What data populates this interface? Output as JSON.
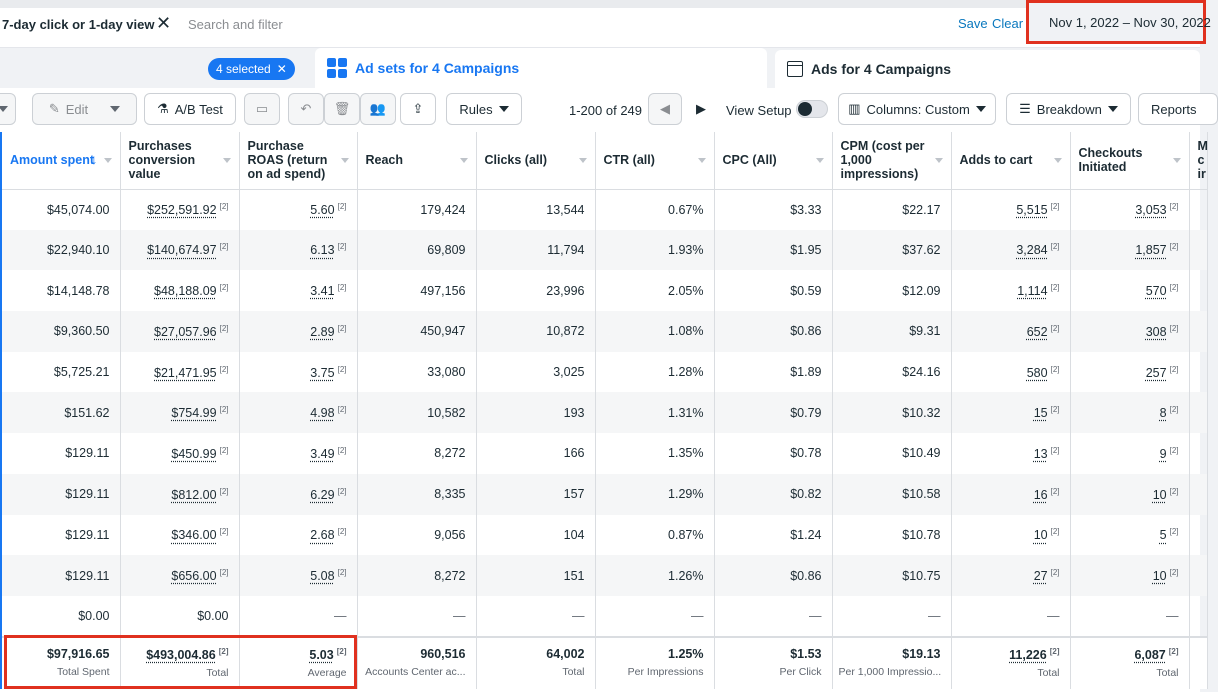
{
  "filter_bar": {
    "attribution_chip": "7-day click or 1-day view",
    "search_placeholder": "Search and filter",
    "save_label": "Save",
    "clear_label": "Clear",
    "date_range": "Nov 1, 2022 – Nov 30, 2022"
  },
  "tabs": {
    "selected_count": "4 selected",
    "active_tab": "Ad sets for 4 Campaigns",
    "inactive_tab": "Ads for 4 Campaigns"
  },
  "toolbar": {
    "edit_label": "Edit",
    "ab_test_label": "A/B Test",
    "rules_label": "Rules",
    "pagination": "1-200 of 249",
    "view_setup_label": "View Setup",
    "columns_label": "Columns: Custom",
    "breakdown_label": "Breakdown",
    "reports_label": "Reports"
  },
  "table": {
    "headers": [
      "Amount spent",
      "Purchases conversion value",
      "Purchase ROAS (return on ad spend)",
      "Reach",
      "Clicks (all)",
      "CTR (all)",
      "CPC (All)",
      "CPM (cost per 1,000 impressions)",
      "Adds to cart",
      "Checkouts Initiated",
      "M c ir"
    ],
    "rows": [
      [
        "$45,074.00",
        "$252,591.92",
        "5.60",
        "179,424",
        "13,544",
        "0.67%",
        "$3.33",
        "$22.17",
        "5,515",
        "3,053"
      ],
      [
        "$22,940.10",
        "$140,674.97",
        "6.13",
        "69,809",
        "11,794",
        "1.93%",
        "$1.95",
        "$37.62",
        "3,284",
        "1,857"
      ],
      [
        "$14,148.78",
        "$48,188.09",
        "3.41",
        "497,156",
        "23,996",
        "2.05%",
        "$0.59",
        "$12.09",
        "1,114",
        "570"
      ],
      [
        "$9,360.50",
        "$27,057.96",
        "2.89",
        "450,947",
        "10,872",
        "1.08%",
        "$0.86",
        "$9.31",
        "652",
        "308"
      ],
      [
        "$5,725.21",
        "$21,471.95",
        "3.75",
        "33,080",
        "3,025",
        "1.28%",
        "$1.89",
        "$24.16",
        "580",
        "257"
      ],
      [
        "$151.62",
        "$754.99",
        "4.98",
        "10,582",
        "193",
        "1.31%",
        "$0.79",
        "$10.32",
        "15",
        "8"
      ],
      [
        "$129.11",
        "$450.99",
        "3.49",
        "8,272",
        "166",
        "1.35%",
        "$0.78",
        "$10.49",
        "13",
        "9"
      ],
      [
        "$129.11",
        "$812.00",
        "6.29",
        "8,335",
        "157",
        "1.29%",
        "$0.82",
        "$10.58",
        "16",
        "10"
      ],
      [
        "$129.11",
        "$346.00",
        "2.68",
        "9,056",
        "104",
        "0.87%",
        "$1.24",
        "$10.78",
        "10",
        "5"
      ],
      [
        "$129.11",
        "$656.00",
        "5.08",
        "8,272",
        "151",
        "1.26%",
        "$0.86",
        "$10.75",
        "27",
        "10"
      ],
      [
        "$0.00",
        "$0.00",
        "—",
        "—",
        "—",
        "—",
        "—",
        "—",
        "—",
        "—"
      ]
    ],
    "footnote_marker": "[2]",
    "totals": [
      {
        "value": "$97,916.65",
        "label": "Total Spent"
      },
      {
        "value": "$493,004.86",
        "label": "Total"
      },
      {
        "value": "5.03",
        "label": "Average"
      },
      {
        "value": "960,516",
        "label": "Accounts Center ac..."
      },
      {
        "value": "64,002",
        "label": "Total"
      },
      {
        "value": "1.25%",
        "label": "Per Impressions"
      },
      {
        "value": "$1.53",
        "label": "Per Click"
      },
      {
        "value": "$19.13",
        "label": "Per 1,000 Impressio..."
      },
      {
        "value": "11,226",
        "label": "Total"
      },
      {
        "value": "6,087",
        "label": "Total"
      }
    ]
  },
  "colors": {
    "accent": "#1877f2",
    "highlight_box": "#e0311f",
    "link": "#0a78be"
  }
}
